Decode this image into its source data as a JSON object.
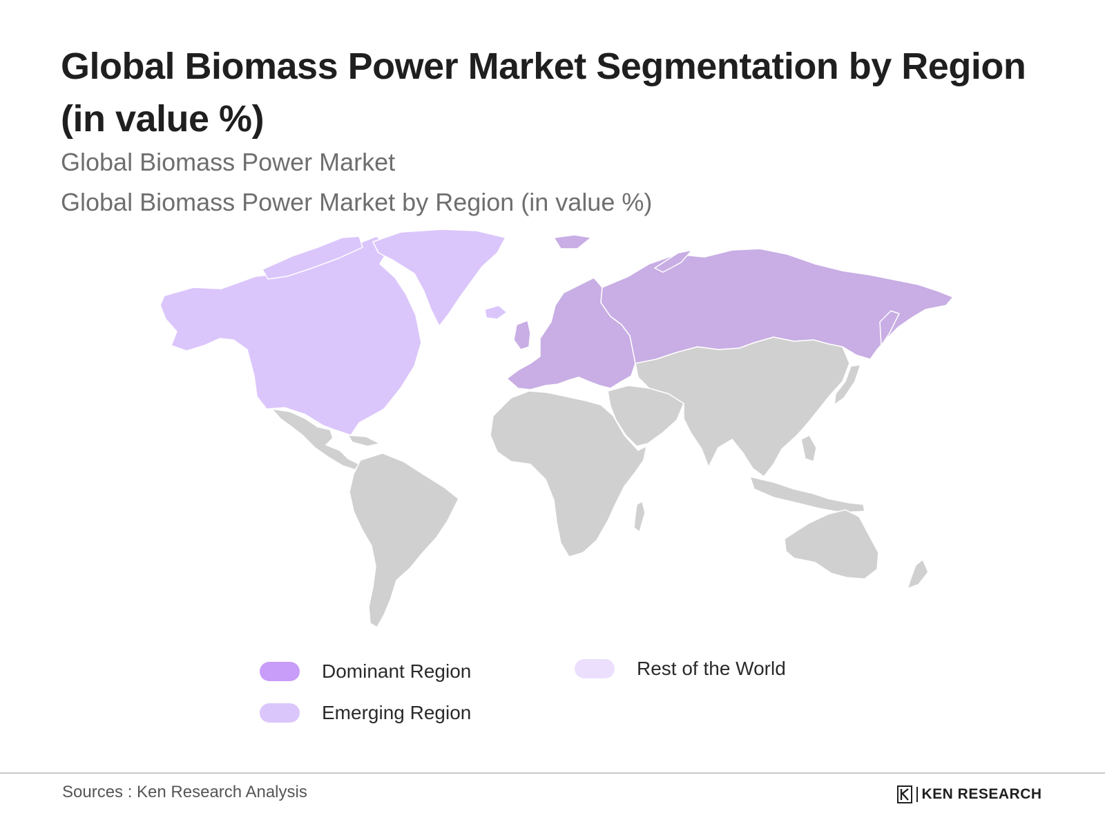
{
  "header": {
    "title": "Global Biomass Power Market Segmentation by Region (in value %)",
    "subtitle_1": "Global Biomass Power Market",
    "subtitle_2": "Global Biomass Power Market by Region (in value %)"
  },
  "map": {
    "colors": {
      "dominant": "#c8aee4",
      "emerging": "#dbc6fb",
      "rest": "#d0d0d0",
      "border": "#ffffff"
    },
    "regions": {
      "north_america": "Emerging Region",
      "greenland": "Emerging Region",
      "europe": "Dominant Region",
      "russia": "Dominant Region",
      "svalbard": "Dominant Region",
      "latin_america": "Rest of the World",
      "africa": "Rest of the World",
      "middle_east": "Rest of the World",
      "asia": "Rest of the World",
      "oceania": "Rest of the World"
    }
  },
  "legend": {
    "items": [
      {
        "label": "Dominant Region",
        "color": "#c89cf9"
      },
      {
        "label": "Emerging Region",
        "color": "#dbc6fb"
      },
      {
        "label": "Rest of the World",
        "color": "#ecdffd"
      }
    ]
  },
  "footer": {
    "source": "Sources : Ken Research Analysis",
    "logo_text": "KEN RESEARCH",
    "logo_icon": "ken-research-k-icon"
  }
}
